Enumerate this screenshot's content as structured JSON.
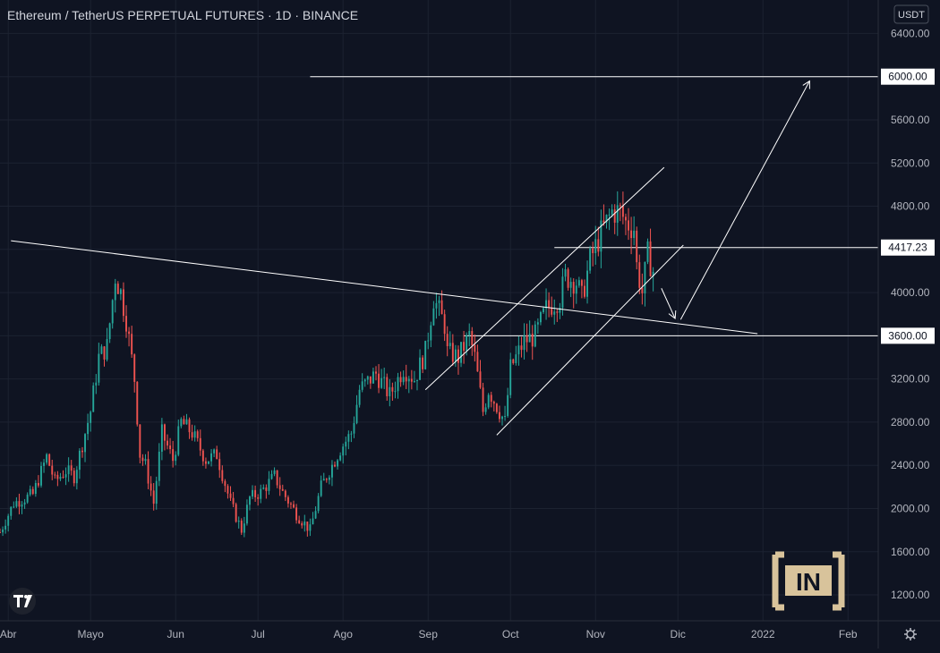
{
  "header": {
    "title": "Ethereum / TetherUS PERPETUAL FUTURES · 1D · BINANCE"
  },
  "price_scale": {
    "currency_label": "USDT"
  },
  "watermark": {
    "logo_text": "IN"
  },
  "icons": {
    "tv_logo": "tradingview-logo-icon",
    "settings": "gear-icon"
  },
  "colors": {
    "background": "#0f1422",
    "grid": "#1c2231",
    "up": "#26a69a",
    "down": "#ef5350",
    "drawing": "#ffffff",
    "text": "#b2b5be",
    "watermark": "#d8c39b"
  },
  "chart_data": {
    "type": "candlestick",
    "title": "Ethereum / TetherUS PERPETUAL FUTURES · 1D · BINANCE",
    "x_range": [
      "2021-03-29",
      "2022-02-12"
    ],
    "y_range": [
      960,
      6710
    ],
    "grid": true,
    "y_ticks": [
      1200,
      1600,
      2000,
      2400,
      2800,
      3200,
      3600,
      4000,
      4400,
      4800,
      5200,
      5600,
      6000,
      6400
    ],
    "x_ticks": [
      {
        "label": "Abr",
        "date": "2021-04-01"
      },
      {
        "label": "Mayo",
        "date": "2021-05-01"
      },
      {
        "label": "Jun",
        "date": "2021-06-01"
      },
      {
        "label": "Jul",
        "date": "2021-07-01"
      },
      {
        "label": "Ago",
        "date": "2021-08-01"
      },
      {
        "label": "Sep",
        "date": "2021-09-01"
      },
      {
        "label": "Oct",
        "date": "2021-10-01"
      },
      {
        "label": "Nov",
        "date": "2021-11-01"
      },
      {
        "label": "Dic",
        "date": "2021-12-01"
      },
      {
        "label": "2022",
        "date": "2022-01-01"
      },
      {
        "label": "Feb",
        "date": "2022-02-01"
      }
    ],
    "close_path": [
      [
        "2021-03-29",
        1780
      ],
      [
        "2021-04-03",
        2050
      ],
      [
        "2021-04-10",
        2130
      ],
      [
        "2021-04-15",
        2480
      ],
      [
        "2021-04-18",
        2250
      ],
      [
        "2021-04-22",
        2350
      ],
      [
        "2021-04-25",
        2300
      ],
      [
        "2021-05-01",
        2900
      ],
      [
        "2021-05-04",
        3400
      ],
      [
        "2021-05-07",
        3500
      ],
      [
        "2021-05-10",
        4150
      ],
      [
        "2021-05-12",
        4000
      ],
      [
        "2021-05-14",
        3750
      ],
      [
        "2021-05-17",
        3200
      ],
      [
        "2021-05-19",
        2500
      ],
      [
        "2021-05-21",
        2400
      ],
      [
        "2021-05-24",
        2050
      ],
      [
        "2021-05-27",
        2700
      ],
      [
        "2021-05-31",
        2450
      ],
      [
        "2021-06-03",
        2800
      ],
      [
        "2021-06-07",
        2700
      ],
      [
        "2021-06-12",
        2450
      ],
      [
        "2021-06-16",
        2500
      ],
      [
        "2021-06-21",
        2050
      ],
      [
        "2021-06-25",
        1800
      ],
      [
        "2021-06-28",
        2100
      ],
      [
        "2021-07-02",
        2150
      ],
      [
        "2021-07-07",
        2300
      ],
      [
        "2021-07-10",
        2150
      ],
      [
        "2021-07-15",
        1950
      ],
      [
        "2021-07-20",
        1800
      ],
      [
        "2021-07-24",
        2200
      ],
      [
        "2021-07-31",
        2550
      ],
      [
        "2021-08-04",
        2700
      ],
      [
        "2021-08-07",
        3100
      ],
      [
        "2021-08-13",
        3250
      ],
      [
        "2021-08-18",
        3050
      ],
      [
        "2021-08-23",
        3300
      ],
      [
        "2021-08-27",
        3200
      ],
      [
        "2021-08-31",
        3450
      ],
      [
        "2021-09-03",
        3950
      ],
      [
        "2021-09-07",
        3700
      ],
      [
        "2021-09-08",
        3450
      ],
      [
        "2021-09-12",
        3400
      ],
      [
        "2021-09-16",
        3600
      ],
      [
        "2021-09-18",
        3400
      ],
      [
        "2021-09-21",
        2900
      ],
      [
        "2021-09-23",
        3100
      ],
      [
        "2021-09-27",
        2900
      ],
      [
        "2021-09-29",
        2800
      ],
      [
        "2021-10-01",
        3300
      ],
      [
        "2021-10-06",
        3550
      ],
      [
        "2021-10-10",
        3600
      ],
      [
        "2021-10-14",
        3850
      ],
      [
        "2021-10-19",
        3950
      ],
      [
        "2021-10-21",
        4150
      ],
      [
        "2021-10-25",
        4100
      ],
      [
        "2021-10-27",
        3950
      ],
      [
        "2021-10-30",
        4300
      ],
      [
        "2021-11-03",
        4550
      ],
      [
        "2021-11-07",
        4750
      ],
      [
        "2021-11-10",
        4750
      ],
      [
        "2021-11-12",
        4650
      ],
      [
        "2021-11-15",
        4600
      ],
      [
        "2021-11-16",
        4250
      ],
      [
        "2021-11-18",
        4000
      ],
      [
        "2021-11-20",
        4350
      ],
      [
        "2021-11-22",
        4200
      ]
    ],
    "horizontal_levels": [
      {
        "value": 6000.0,
        "label": "6000.00",
        "from": "2021-07-20"
      },
      {
        "value": 4417.23,
        "label": "4417.23",
        "from": "2021-10-17"
      },
      {
        "value": 3600.0,
        "label": "3600.00",
        "from": "2021-09-14"
      }
    ],
    "trendlines": [
      {
        "name": "descending-resistance",
        "from": [
          "2021-04-02",
          4480
        ],
        "to": [
          "2021-12-30",
          3620
        ]
      },
      {
        "name": "channel-upper",
        "from": [
          "2021-08-31",
          3100
        ],
        "to": [
          "2021-11-26",
          5160
        ]
      },
      {
        "name": "channel-lower",
        "from": [
          "2021-09-26",
          2680
        ],
        "to": [
          "2021-12-03",
          4440
        ]
      }
    ],
    "arrows": [
      {
        "name": "arrow-down",
        "from": [
          "2021-11-25",
          4040
        ],
        "to": [
          "2021-11-30",
          3760
        ]
      },
      {
        "name": "arrow-up",
        "from": [
          "2021-12-02",
          3750
        ],
        "to": [
          "2022-01-18",
          5960
        ]
      }
    ]
  }
}
